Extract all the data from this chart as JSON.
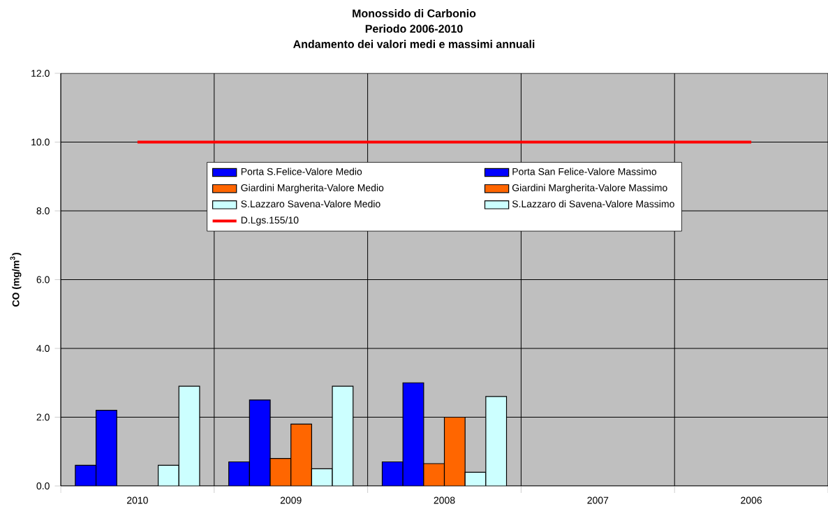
{
  "chart_data": {
    "type": "bar",
    "title": "Monossido di Carbonio",
    "subtitle": "Periodo 2006-2010",
    "annotations": [
      "Andamento dei valori medi e massimi annuali"
    ],
    "ylabel": "CO (mg/m$^{3}$)",
    "categories": [
      "2010",
      "2009",
      "2008",
      "2007",
      "2006"
    ],
    "series": [
      {
        "name": "Porta S.Felice-Valore Medio",
        "color": "#0000ff",
        "values": [
          0.6,
          0.7,
          0.7,
          null,
          null
        ]
      },
      {
        "name": "Porta San Felice-Valore Massimo",
        "color": "#0000ff",
        "values": [
          2.2,
          2.5,
          3.0,
          null,
          null
        ]
      },
      {
        "name": "Giardini Margherita-Valore Medio",
        "color": "#ff6600",
        "values": [
          null,
          0.8,
          0.65,
          null,
          null
        ]
      },
      {
        "name": "Giardini Margherita-Valore Massimo",
        "color": "#ff6600",
        "values": [
          null,
          1.8,
          2.0,
          null,
          null
        ]
      },
      {
        "name": "S.Lazzaro Savena-Valore Medio",
        "color": "#ccffff",
        "values": [
          0.6,
          0.5,
          0.4,
          null,
          null
        ]
      },
      {
        "name": "S.Lazzaro di Savena-Valore Massimo",
        "color": "#ccffff",
        "values": [
          2.9,
          2.9,
          2.6,
          null,
          null
        ]
      },
      {
        "name": "D.Lgs.155/10",
        "type": "line",
        "color": "#ff0000",
        "values": [
          10,
          10,
          10,
          10,
          10
        ]
      }
    ],
    "ylim": [
      0,
      12
    ],
    "yticks": [
      {
        "value": 0,
        "label": "0.0"
      },
      {
        "value": 2,
        "label": "2.0"
      },
      {
        "value": 4,
        "label": "4.0"
      },
      {
        "value": 6,
        "label": "6.0"
      },
      {
        "value": 8,
        "label": "8.0"
      },
      {
        "value": 10,
        "label": "10.0"
      },
      {
        "value": 12,
        "label": "12.0"
      }
    ],
    "grid": true,
    "legend": "top",
    "marker": "none"
  }
}
